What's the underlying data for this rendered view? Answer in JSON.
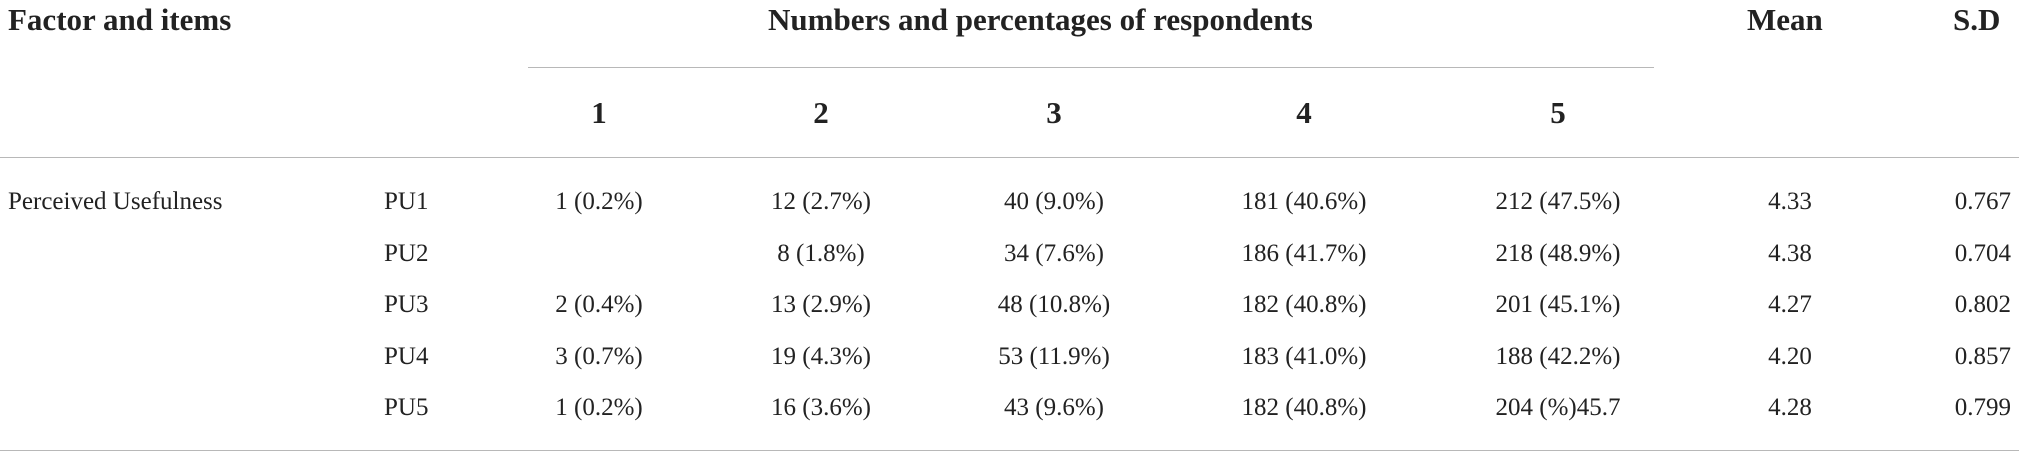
{
  "table": {
    "headers": {
      "factor": "Factor and items",
      "group": "Numbers and percentages of respondents",
      "mean": "Mean",
      "sd": "S.D"
    },
    "scale": [
      "1",
      "2",
      "3",
      "4",
      "5"
    ],
    "factor_name": "Perceived Usefulness",
    "rows": [
      {
        "item": "PU1",
        "c1": "1 (0.2%)",
        "c2": "12 (2.7%)",
        "c3": "40 (9.0%)",
        "c4": "181 (40.6%)",
        "c5": "212 (47.5%)",
        "mean": "4.33",
        "sd": "0.767"
      },
      {
        "item": "PU2",
        "c1": "",
        "c2": "8 (1.8%)",
        "c3": "34 (7.6%)",
        "c4": "186 (41.7%)",
        "c5": "218 (48.9%)",
        "mean": "4.38",
        "sd": "0.704"
      },
      {
        "item": "PU3",
        "c1": "2 (0.4%)",
        "c2": "13 (2.9%)",
        "c3": "48 (10.8%)",
        "c4": "182 (40.8%)",
        "c5": "201 (45.1%)",
        "mean": "4.27",
        "sd": "0.802"
      },
      {
        "item": "PU4",
        "c1": "3 (0.7%)",
        "c2": "19 (4.3%)",
        "c3": "53 (11.9%)",
        "c4": "183 (41.0%)",
        "c5": "188 (42.2%)",
        "mean": "4.20",
        "sd": "0.857"
      },
      {
        "item": "PU5",
        "c1": "1 (0.2%)",
        "c2": "16 (3.6%)",
        "c3": "43 (9.6%)",
        "c4": "182 (40.8%)",
        "c5": "204 (%)45.7",
        "mean": "4.28",
        "sd": "0.799"
      }
    ]
  }
}
